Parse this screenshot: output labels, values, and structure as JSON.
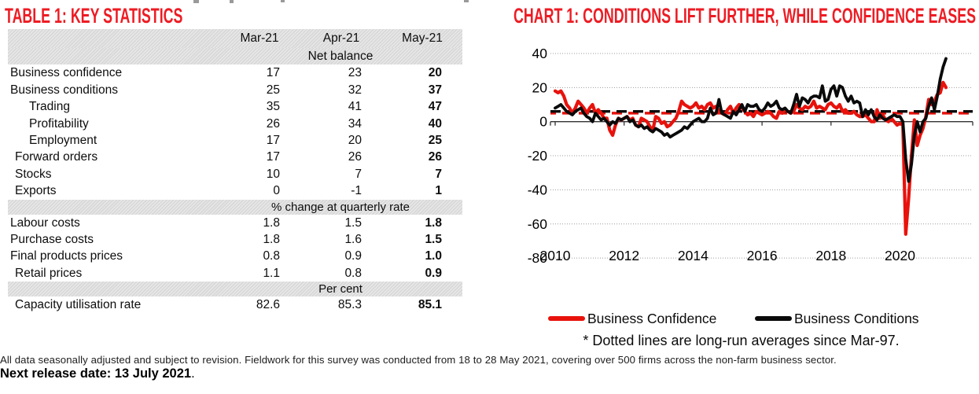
{
  "table": {
    "title": "TABLE 1: KEY STATISTICS",
    "columns": [
      "Mar-21",
      "Apr-21",
      "May-21"
    ],
    "sections": [
      {
        "header": "Net balance",
        "rows": [
          {
            "label": "Business confidence",
            "indent": 0,
            "values": [
              "17",
              "23",
              "20"
            ]
          },
          {
            "label": "Business conditions",
            "indent": 0,
            "values": [
              "25",
              "32",
              "37"
            ]
          },
          {
            "label": "Trading",
            "indent": 2,
            "values": [
              "35",
              "41",
              "47"
            ]
          },
          {
            "label": "Profitability",
            "indent": 2,
            "values": [
              "26",
              "34",
              "40"
            ]
          },
          {
            "label": "Employment",
            "indent": 2,
            "values": [
              "17",
              "20",
              "25"
            ]
          },
          {
            "label": "Forward orders",
            "indent": 1,
            "values": [
              "17",
              "26",
              "26"
            ]
          },
          {
            "label": "Stocks",
            "indent": 1,
            "values": [
              "10",
              "7",
              "7"
            ]
          },
          {
            "label": "Exports",
            "indent": 1,
            "values": [
              "0",
              "-1",
              "1"
            ]
          }
        ]
      },
      {
        "header": "% change at quarterly rate",
        "rows": [
          {
            "label": "Labour costs",
            "indent": 0,
            "values": [
              "1.8",
              "1.5",
              "1.8"
            ]
          },
          {
            "label": "Purchase costs",
            "indent": 0,
            "values": [
              "1.8",
              "1.6",
              "1.5"
            ]
          },
          {
            "label": "Final products prices",
            "indent": 0,
            "values": [
              "0.8",
              "0.9",
              "1.0"
            ]
          },
          {
            "label": "Retail prices",
            "indent": 1,
            "values": [
              "1.1",
              "0.8",
              "0.9"
            ]
          }
        ]
      },
      {
        "header": "Per cent",
        "rows": [
          {
            "label": "Capacity utilisation rate",
            "indent": 1,
            "values": [
              "82.6",
              "85.3",
              "85.1"
            ]
          }
        ]
      }
    ]
  },
  "chart": {
    "title": "CHART 1: CONDITIONS LIFT FURTHER, WHILE CONFIDENCE EASES",
    "footnote": "* Dotted lines are long-run averages since Mar-97.",
    "legend": [
      {
        "label": "Business Confidence",
        "color": "#e8120c"
      },
      {
        "label": "Business Conditions",
        "color": "#0a0a0a"
      }
    ]
  },
  "chart_data": {
    "type": "line",
    "title": "CHART 1: CONDITIONS LIFT FURTHER, WHILE CONFIDENCE EASES",
    "x_start_year": 2010,
    "x_step_months": 1,
    "x_end": "May-2021",
    "ylim": [
      -80,
      40
    ],
    "yticks": [
      40,
      20,
      0,
      -20,
      -40,
      -60,
      -80
    ],
    "xticks": [
      2010,
      2012,
      2014,
      2016,
      2018,
      2020
    ],
    "grid": "horizontal-dotted",
    "legend_position": "bottom",
    "annotation": "* Dotted lines are long-run averages since Mar-97.",
    "series": [
      {
        "name": "Business Confidence",
        "color": "#e8120c",
        "long_run_avg": 5,
        "values": [
          18,
          17,
          18,
          15,
          10,
          8,
          5,
          8,
          12,
          10,
          8,
          5,
          8,
          10,
          5,
          7,
          5,
          2,
          2,
          -5,
          -8,
          -2,
          2,
          1,
          2,
          3,
          1,
          2,
          -2,
          -3,
          2,
          1,
          0,
          -3,
          -5,
          3,
          2,
          -1,
          0,
          -3,
          -2,
          0,
          2,
          6,
          12,
          10,
          9,
          8,
          9,
          11,
          8,
          9,
          7,
          10,
          11,
          8,
          9,
          6,
          5,
          4,
          7,
          9,
          5,
          8,
          10,
          8,
          6,
          4,
          5,
          3,
          6,
          5,
          4,
          5,
          6,
          5,
          3,
          2,
          6,
          5,
          7,
          6,
          5,
          6,
          10,
          8,
          7,
          9,
          8,
          9,
          12,
          8,
          9,
          8,
          7,
          10,
          11,
          9,
          8,
          10,
          6,
          7,
          5,
          5,
          6,
          4,
          3,
          3,
          4,
          2,
          0,
          0,
          7,
          2,
          4,
          1,
          0,
          2,
          0,
          -2,
          -1,
          -2,
          -66,
          -45,
          -20,
          1,
          -14,
          -8,
          -4,
          3,
          13,
          10,
          12,
          16,
          17,
          23,
          20
        ]
      },
      {
        "name": "Business Conditions",
        "color": "#0a0a0a",
        "long_run_avg": 6,
        "values": [
          8,
          9,
          10,
          8,
          6,
          5,
          4,
          6,
          7,
          8,
          5,
          3,
          2,
          0,
          5,
          3,
          1,
          2,
          0,
          -2,
          0,
          -1,
          2,
          1,
          2,
          3,
          0,
          1,
          -2,
          -3,
          -2,
          -4,
          -3,
          -5,
          -6,
          -4,
          -5,
          -6,
          -8,
          -7,
          -9,
          -8,
          -7,
          -6,
          -5,
          -3,
          -4,
          -2,
          0,
          1,
          2,
          0,
          0,
          2,
          8,
          4,
          5,
          13,
          5,
          4,
          3,
          2,
          6,
          4,
          7,
          10,
          6,
          10,
          9,
          9,
          10,
          7,
          6,
          8,
          11,
          9,
          10,
          12,
          8,
          7,
          8,
          6,
          5,
          10,
          16,
          9,
          14,
          13,
          11,
          14,
          15,
          15,
          14,
          21,
          12,
          13,
          19,
          21,
          15,
          21,
          20,
          15,
          12,
          15,
          11,
          12,
          11,
          3,
          7,
          4,
          7,
          3,
          1,
          4,
          2,
          1,
          2,
          3,
          4,
          3,
          3,
          0,
          -22,
          -35,
          -25,
          -8,
          0,
          -6,
          0,
          2,
          9,
          14,
          7,
          15,
          25,
          32,
          37
        ]
      }
    ]
  },
  "footer": {
    "note": "All data seasonally adjusted and subject to revision. Fieldwork for this survey was conducted from 18 to 28 May 2021,  covering over 500 firms across the non-farm business sector.",
    "release_bold": "Next release date: 13 July 2021",
    "release_suffix": "."
  }
}
